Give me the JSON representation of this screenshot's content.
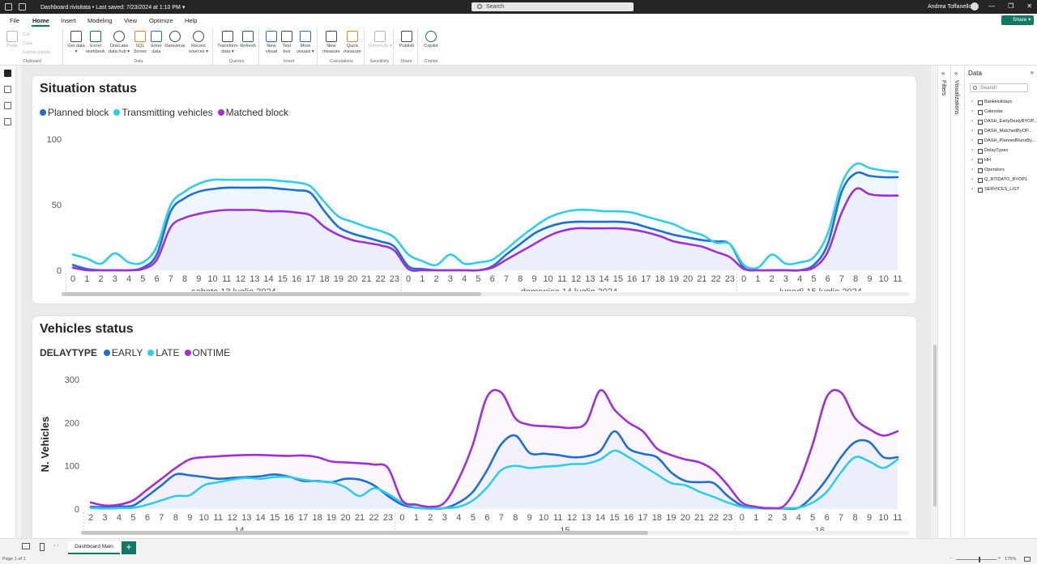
{
  "titlebar": {
    "title": "Dashboard rivisitata • Last saved: 7/23/2024 at 1:10 PM ▾",
    "search_placeholder": "Search",
    "user": "Andrea Toffanello",
    "minimize": "—",
    "restore": "❐",
    "close": "✕"
  },
  "menu": {
    "tabs": [
      "File",
      "Home",
      "Insert",
      "Modeling",
      "View",
      "Optimize",
      "Help"
    ],
    "active": "Home",
    "share_label": "Share ▾"
  },
  "ribbon": {
    "clipboard": {
      "paste": "Paste",
      "cut": "Cut",
      "copy": "Copy",
      "format_painter": "Format painter",
      "label": "Clipboard"
    },
    "data": {
      "label": "Data",
      "buttons": [
        "Get data ▾",
        "Excel workbook",
        "OneLake data hub ▾",
        "SQL Server",
        "Enter data",
        "Dataverse",
        "Recent sources ▾"
      ]
    },
    "queries": {
      "label": "Queries",
      "buttons": [
        "Transform data ▾",
        "Refresh"
      ]
    },
    "insert": {
      "label": "Insert",
      "buttons": [
        "New visual",
        "Text box",
        "More visuals ▾"
      ]
    },
    "calculations": {
      "label": "Calculations",
      "buttons": [
        "New measure",
        "Quick measure"
      ]
    },
    "sensitivity": {
      "label": "Sensitivity",
      "buttons": [
        "Sensitivity ▾"
      ]
    },
    "share": {
      "label": "Share",
      "buttons": [
        "Publish"
      ]
    },
    "copilot": {
      "label": "Copilot",
      "buttons": [
        "Copilot"
      ]
    }
  },
  "colors": {
    "planned": "#1d6fd1",
    "transmitting": "#2fcdea",
    "matched": "#a22fd6",
    "early": "#1d6fd1",
    "late": "#2fcdea",
    "ontime": "#a22fd6",
    "accent": "#117865"
  },
  "chart1": {
    "title": "Situation status",
    "legend": [
      "Planned block",
      "Transmitting vehicles",
      "Matched block"
    ]
  },
  "chart2": {
    "title": "Vehicles status",
    "legend_title": "DELAYTYPE",
    "legend": [
      "EARLY",
      "LATE",
      "ONTIME"
    ]
  },
  "chart_data": [
    {
      "type": "line",
      "title": "Situation status",
      "xlabel": "",
      "ylabel": "",
      "ylim": [
        0,
        100
      ],
      "yticks": [
        0,
        50,
        100
      ],
      "grid": false,
      "legend_position": "top-left",
      "x": [
        "0",
        "1",
        "2",
        "3",
        "4",
        "5",
        "6",
        "7",
        "8",
        "9",
        "10",
        "11",
        "12",
        "13",
        "14",
        "15",
        "16",
        "17",
        "18",
        "19",
        "20",
        "21",
        "22",
        "23",
        "0",
        "1",
        "2",
        "3",
        "4",
        "5",
        "6",
        "7",
        "8",
        "9",
        "10",
        "11",
        "12",
        "13",
        "14",
        "15",
        "16",
        "17",
        "18",
        "19",
        "20",
        "21",
        "22",
        "23",
        "0",
        "1",
        "2",
        "3",
        "4",
        "5",
        "6",
        "7",
        "8",
        "9",
        "10",
        "11"
      ],
      "groups": [
        {
          "label": "sabato 13 luglio 2024",
          "start": 0,
          "end": 23
        },
        {
          "label": "domenica 14 luglio 2024",
          "start": 24,
          "end": 47
        },
        {
          "label": "lunedì 15 luglio 2024",
          "start": 48,
          "end": 59
        }
      ],
      "series": [
        {
          "name": "Planned block",
          "values": [
            4,
            1,
            0,
            0,
            0,
            2,
            12,
            45,
            55,
            60,
            62,
            63,
            63,
            63,
            63,
            62,
            61,
            59,
            45,
            33,
            28,
            25,
            22,
            18,
            3,
            1,
            0,
            0,
            0,
            0,
            3,
            12,
            20,
            28,
            33,
            36,
            37,
            37,
            37,
            37,
            36,
            33,
            30,
            27,
            25,
            23,
            22,
            20,
            2,
            0,
            0,
            0,
            0,
            4,
            20,
            60,
            74,
            72,
            71,
            71
          ]
        },
        {
          "name": "Transmitting vehicles",
          "values": [
            12,
            9,
            5,
            13,
            6,
            6,
            18,
            50,
            60,
            66,
            69,
            69,
            69,
            69,
            69,
            68,
            67,
            64,
            52,
            41,
            37,
            33,
            30,
            25,
            12,
            7,
            4,
            12,
            5,
            6,
            8,
            16,
            25,
            33,
            40,
            44,
            46,
            46,
            45,
            45,
            44,
            41,
            38,
            35,
            30,
            27,
            21,
            20,
            4,
            2,
            12,
            5,
            6,
            10,
            28,
            66,
            81,
            78,
            76,
            75
          ]
        },
        {
          "name": "Matched block",
          "values": [
            2,
            0,
            0,
            0,
            0,
            1,
            8,
            33,
            40,
            43,
            45,
            46,
            46,
            46,
            45,
            45,
            44,
            42,
            33,
            27,
            23,
            21,
            19,
            15,
            1,
            0,
            0,
            0,
            0,
            0,
            2,
            8,
            14,
            20,
            26,
            30,
            32,
            32,
            32,
            32,
            31,
            29,
            26,
            22,
            20,
            18,
            14,
            10,
            1,
            0,
            0,
            0,
            0,
            2,
            14,
            44,
            62,
            58,
            57,
            57
          ]
        }
      ]
    },
    {
      "type": "line",
      "title": "Vehicles status",
      "xlabel": "",
      "ylabel": "N. Vehicles",
      "ylim": [
        0,
        300
      ],
      "yticks": [
        0,
        100,
        200,
        300
      ],
      "grid": false,
      "legend_title": "DELAYTYPE",
      "legend_position": "top-left",
      "x": [
        "2",
        "3",
        "4",
        "5",
        "6",
        "7",
        "8",
        "9",
        "10",
        "11",
        "12",
        "13",
        "14",
        "15",
        "16",
        "17",
        "18",
        "19",
        "20",
        "21",
        "22",
        "23",
        "0",
        "1",
        "2",
        "3",
        "4",
        "5",
        "6",
        "7",
        "8",
        "9",
        "10",
        "11",
        "12",
        "13",
        "14",
        "15",
        "16",
        "17",
        "18",
        "19",
        "20",
        "21",
        "22",
        "23",
        "0",
        "1",
        "2",
        "3",
        "4",
        "5",
        "6",
        "7",
        "8",
        "9",
        "10",
        "11"
      ],
      "groups": [
        {
          "label": "14",
          "start": 0,
          "end": 21
        },
        {
          "label": "15",
          "start": 22,
          "end": 45
        },
        {
          "label": "16",
          "start": 46,
          "end": 57
        }
      ],
      "series": [
        {
          "name": "EARLY",
          "values": [
            5,
            4,
            6,
            8,
            30,
            55,
            80,
            78,
            74,
            70,
            72,
            74,
            76,
            80,
            75,
            65,
            65,
            62,
            70,
            68,
            55,
            30,
            10,
            3,
            1,
            2,
            15,
            40,
            90,
            150,
            170,
            130,
            128,
            125,
            120,
            122,
            135,
            180,
            140,
            128,
            120,
            85,
            65,
            62,
            60,
            30,
            8,
            3,
            2,
            1,
            3,
            30,
            70,
            120,
            155,
            155,
            120,
            120
          ]
        },
        {
          "name": "LATE",
          "values": [
            2,
            1,
            2,
            3,
            10,
            20,
            30,
            32,
            55,
            62,
            68,
            72,
            70,
            74,
            74,
            68,
            64,
            62,
            50,
            30,
            48,
            35,
            15,
            3,
            1,
            2,
            5,
            20,
            50,
            90,
            100,
            95,
            98,
            100,
            104,
            105,
            115,
            135,
            120,
            100,
            80,
            60,
            55,
            40,
            28,
            15,
            5,
            2,
            1,
            2,
            3,
            15,
            40,
            85,
            120,
            110,
            95,
            115
          ]
        },
        {
          "name": "ONTIME",
          "values": [
            15,
            8,
            10,
            20,
            45,
            70,
            95,
            115,
            120,
            122,
            124,
            125,
            125,
            124,
            123,
            124,
            120,
            110,
            108,
            106,
            103,
            95,
            20,
            10,
            5,
            15,
            70,
            150,
            260,
            270,
            210,
            195,
            192,
            190,
            188,
            200,
            275,
            230,
            200,
            180,
            140,
            125,
            115,
            108,
            90,
            55,
            15,
            5,
            2,
            8,
            60,
            150,
            260,
            270,
            210,
            185,
            170,
            180
          ]
        }
      ]
    }
  ],
  "panes": {
    "filters": "Filters",
    "visualizations": "Visualizations",
    "data_title": "Data",
    "data_search": "Search",
    "tables": [
      "BankHolidays",
      "Calendar",
      "DASH_EarlyDealyBYOP...",
      "DASH_MatchedByOP...",
      "DASH_PlannedRunsBy...",
      "DelayTypes",
      "HH",
      "Operators",
      "Q_RTIDATO_BYOP1",
      "SERVICES_LIST"
    ]
  },
  "bottom": {
    "page_tab": "Dashboard Main",
    "add": "+",
    "page_status": "Page 1 of 1",
    "zoom": "175%",
    "zoom_minus": "−",
    "zoom_plus": "+"
  }
}
